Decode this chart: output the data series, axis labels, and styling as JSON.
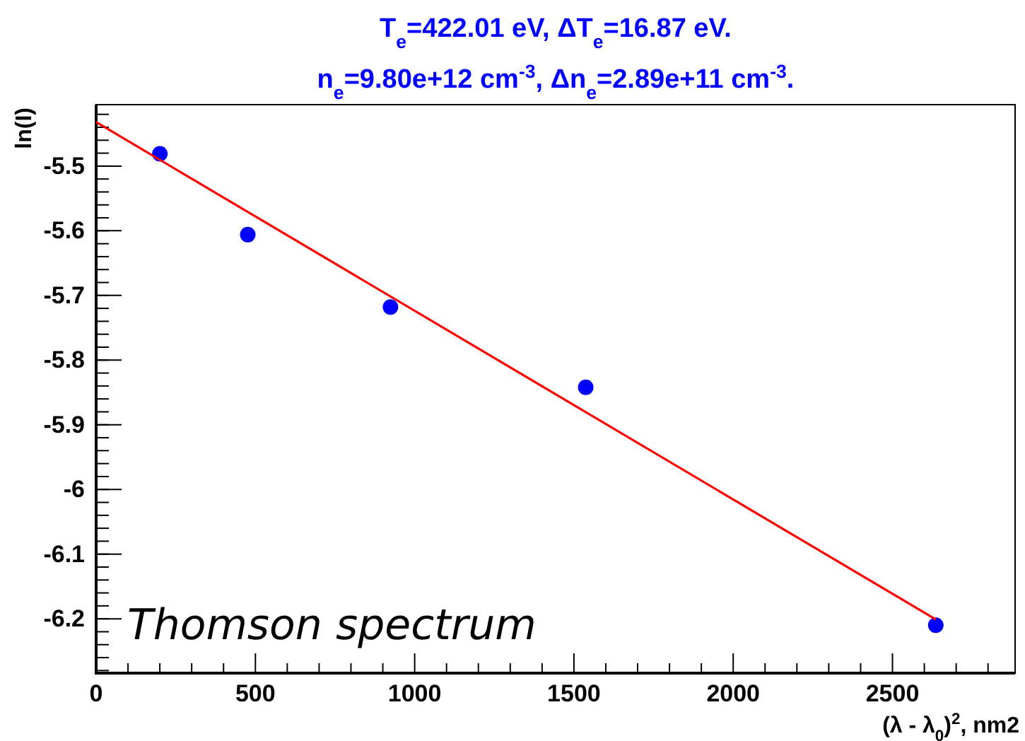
{
  "chart_data": {
    "type": "scatter",
    "title": "T$_{e}$=422.01 eV, ΔT$_{e}$=16.87 eV.",
    "subtitle": "n$_{e}$=9.80e+12 cm$^{-3}$, Δn$_{e}$=2.89e+11 cm$^{-3}$.",
    "xlabel": "(λ - λ$_{0}$)$^{2}$, nm2",
    "ylabel": "ln(I)",
    "x": [
      200,
      476,
      924,
      1537,
      2636
    ],
    "series": [
      {
        "type": "scatter",
        "color": "#0000ff",
        "marker": "circle",
        "values": [
          -5.481,
          -5.606,
          -5.718,
          -5.842,
          -6.21
        ]
      },
      {
        "type": "line",
        "color": "#ff0000",
        "marker": "none",
        "line_style": "solid",
        "x": [
          0,
          2636
        ],
        "values": [
          -5.432,
          -6.201
        ]
      }
    ],
    "xlim": [
      0,
      2885
    ],
    "ylim": [
      -6.284,
      -5.405
    ],
    "xticks": [
      0,
      {
        "value": 100,
        "label": null
      },
      {
        "value": 200,
        "label": null
      },
      {
        "value": 300,
        "label": null
      },
      {
        "value": 400,
        "label": null
      },
      500,
      {
        "value": 600,
        "label": null
      },
      {
        "value": 700,
        "label": null
      },
      {
        "value": 800,
        "label": null
      },
      {
        "value": 900,
        "label": null
      },
      1000,
      {
        "value": 1100,
        "label": null
      },
      {
        "value": 1200,
        "label": null
      },
      {
        "value": 1300,
        "label": null
      },
      {
        "value": 1400,
        "label": null
      },
      1500,
      {
        "value": 1600,
        "label": null
      },
      {
        "value": 1700,
        "label": null
      },
      {
        "value": 1800,
        "label": null
      },
      {
        "value": 1900,
        "label": null
      },
      2000,
      {
        "value": 2100,
        "label": null
      },
      {
        "value": 2200,
        "label": null
      },
      {
        "value": 2300,
        "label": null
      },
      {
        "value": 2400,
        "label": null
      },
      2500,
      {
        "value": 2600,
        "label": null
      },
      {
        "value": 2700,
        "label": null
      },
      {
        "value": 2800,
        "label": null
      }
    ],
    "yticks": [
      {
        "value": -6.28,
        "label": null
      },
      {
        "value": -6.26,
        "label": null
      },
      {
        "value": -6.24,
        "label": null
      },
      {
        "value": -6.22,
        "label": null
      },
      -6.2,
      {
        "value": -6.18,
        "label": null
      },
      {
        "value": -6.16,
        "label": null
      },
      {
        "value": -6.14,
        "label": null
      },
      {
        "value": -6.12,
        "label": null
      },
      -6.1,
      {
        "value": -6.08,
        "label": null
      },
      {
        "value": -6.06,
        "label": null
      },
      {
        "value": -6.04,
        "label": null
      },
      {
        "value": -6.02,
        "label": null
      },
      -6,
      {
        "value": -5.98,
        "label": null
      },
      {
        "value": -5.96,
        "label": null
      },
      {
        "value": -5.94,
        "label": null
      },
      {
        "value": -5.92,
        "label": null
      },
      -5.9,
      {
        "value": -5.88,
        "label": null
      },
      {
        "value": -5.86,
        "label": null
      },
      {
        "value": -5.84,
        "label": null
      },
      {
        "value": -5.82,
        "label": null
      },
      -5.8,
      {
        "value": -5.78,
        "label": null
      },
      {
        "value": -5.76,
        "label": null
      },
      {
        "value": -5.74,
        "label": null
      },
      {
        "value": -5.72,
        "label": null
      },
      -5.7,
      {
        "value": -5.68,
        "label": null
      },
      {
        "value": -5.66,
        "label": null
      },
      {
        "value": -5.64,
        "label": null
      },
      {
        "value": -5.62,
        "label": null
      },
      -5.6,
      {
        "value": -5.58,
        "label": null
      },
      {
        "value": -5.56,
        "label": null
      },
      {
        "value": -5.54,
        "label": null
      },
      {
        "value": -5.52,
        "label": null
      },
      -5.5,
      {
        "value": -5.48,
        "label": null
      },
      {
        "value": -5.46,
        "label": null
      },
      {
        "value": -5.44,
        "label": null
      },
      {
        "value": -5.42,
        "label": null
      }
    ],
    "grid": false,
    "annotations": [
      "Thomson spectrum"
    ]
  }
}
